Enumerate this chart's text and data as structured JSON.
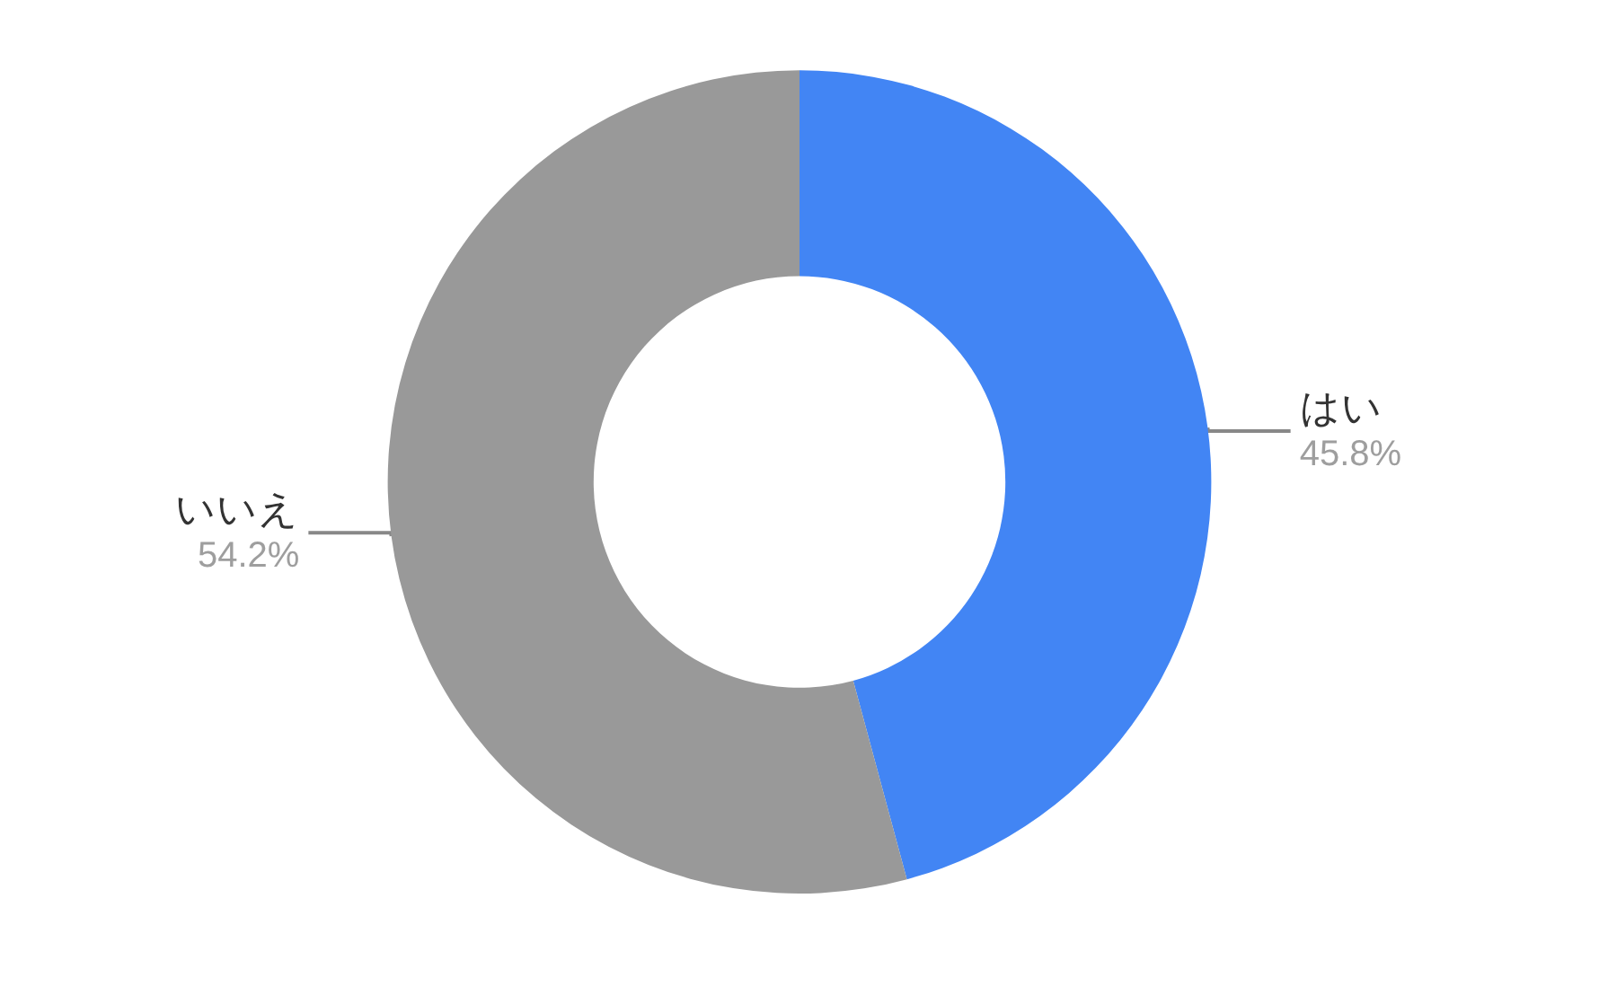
{
  "chart_data": {
    "type": "donut",
    "categories": [
      "はい",
      "いいえ"
    ],
    "values": [
      45.8,
      54.2
    ],
    "colors": [
      "#4285f4",
      "#999999"
    ],
    "value_labels": [
      "45.8%",
      "54.2%"
    ],
    "legend": false
  }
}
